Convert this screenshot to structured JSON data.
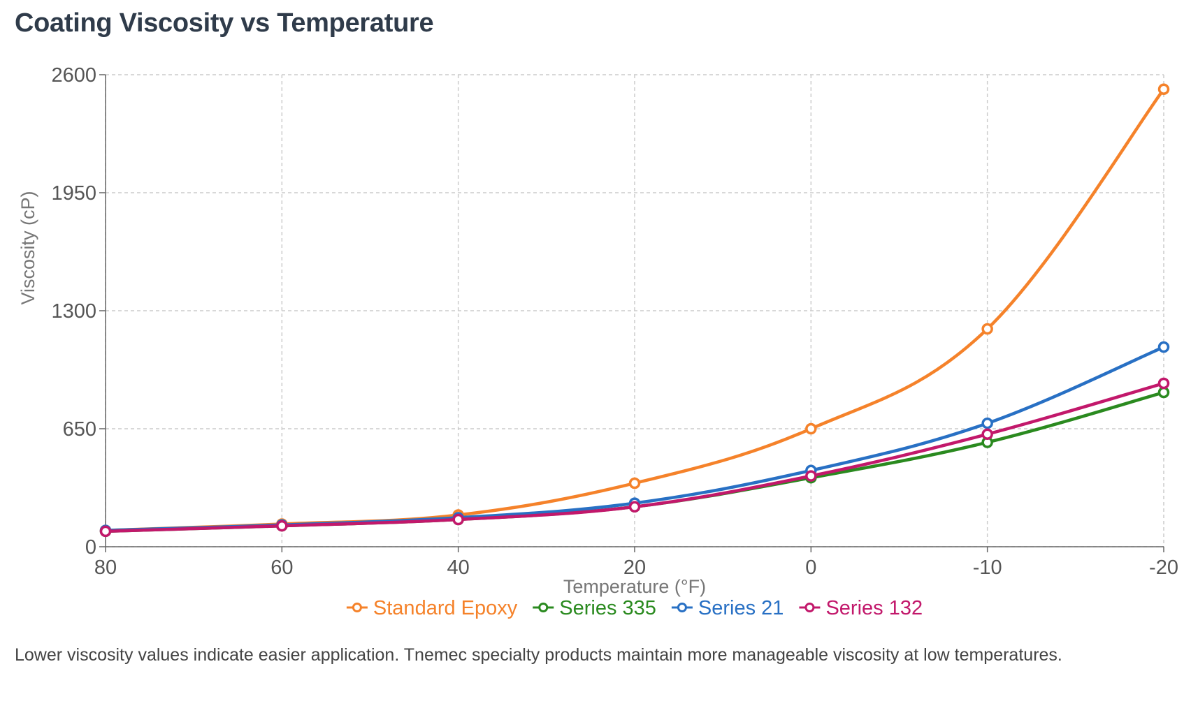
{
  "page": {
    "title": "Coating Viscosity vs Temperature",
    "note": "Lower viscosity values indicate easier application. Tnemec specialty products maintain more manageable viscosity at low temperatures."
  },
  "chart_data": {
    "type": "line",
    "title": "Coating Viscosity vs Temperature",
    "xlabel": "Temperature (°F)",
    "ylabel": "Viscosity (cP)",
    "categories": [
      "80",
      "60",
      "40",
      "20",
      "0",
      "-10",
      "-20"
    ],
    "ylim": [
      0,
      2600
    ],
    "yticks": [
      "0",
      "650",
      "1300",
      "1950",
      "2600"
    ],
    "grid": true,
    "legend_position": "bottom",
    "series": [
      {
        "name": "Standard Epoxy",
        "color": "#f5822a",
        "values": [
          90,
          125,
          175,
          350,
          650,
          1200,
          2520
        ]
      },
      {
        "name": "Series 335",
        "color": "#2a8a1f",
        "values": [
          85,
          115,
          150,
          220,
          380,
          575,
          850
        ]
      },
      {
        "name": "Series 21",
        "color": "#2870c4",
        "values": [
          90,
          120,
          160,
          240,
          420,
          680,
          1100
        ]
      },
      {
        "name": "Series 132",
        "color": "#c2186b",
        "values": [
          85,
          115,
          150,
          220,
          390,
          620,
          900
        ]
      }
    ]
  }
}
